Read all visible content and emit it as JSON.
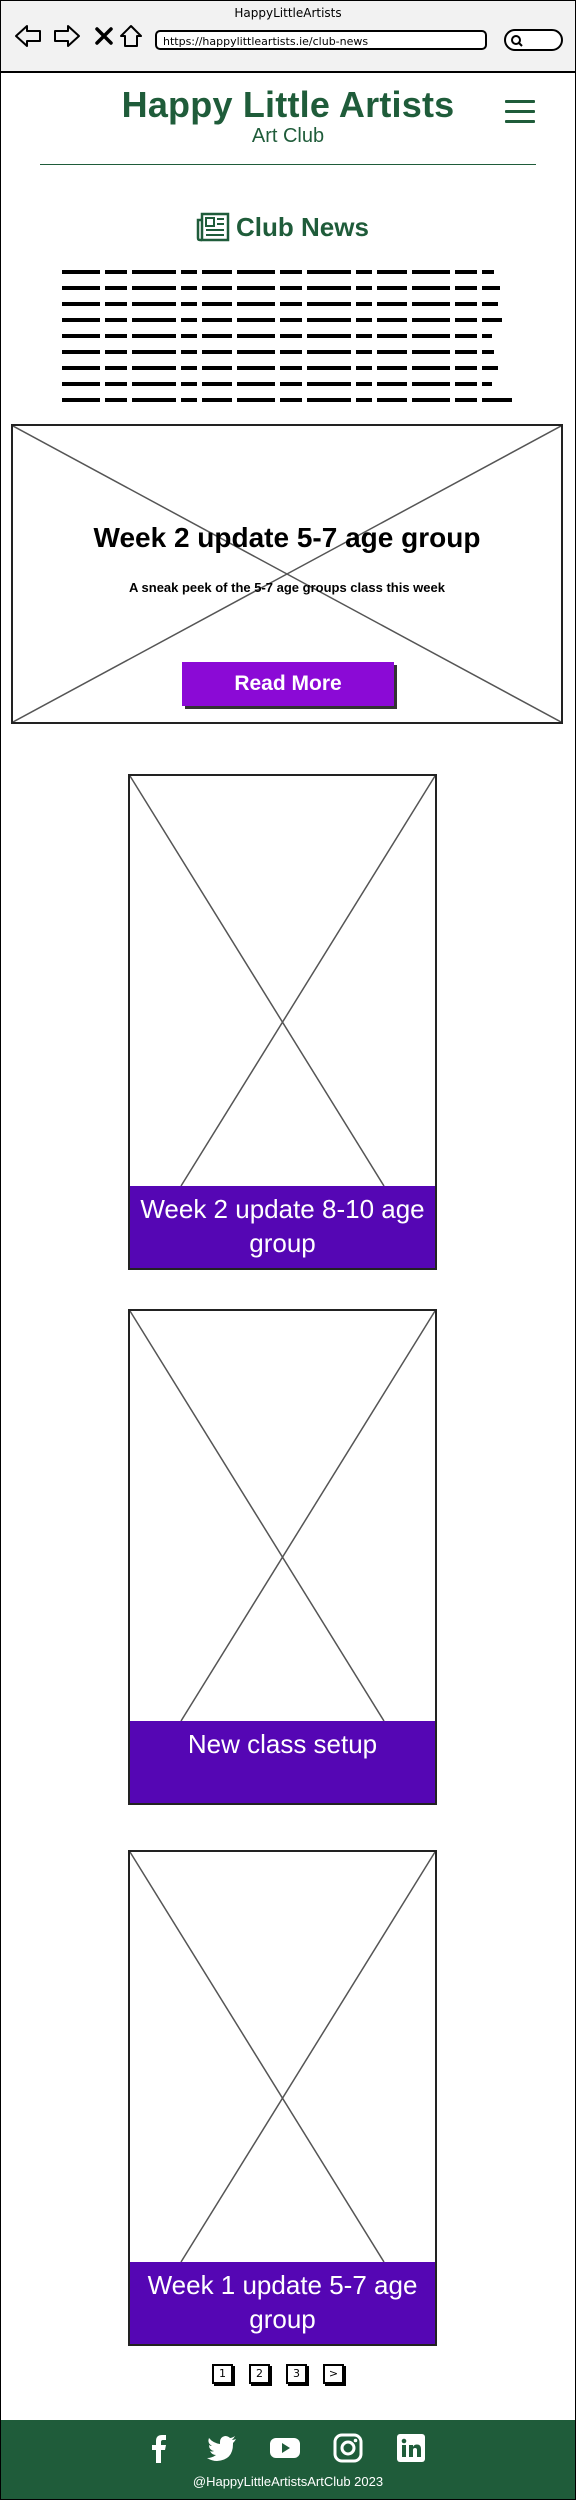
{
  "window": {
    "title": "HappyLittleArtists",
    "url": "https://happylittleartists.ie/club-news"
  },
  "header": {
    "title": "Happy Little Artists",
    "subtitle": "Art Club",
    "menu_icon": "hamburger-menu-icon"
  },
  "news": {
    "heading": "Club News",
    "heading_icon": "newspaper-icon"
  },
  "featured": {
    "title": "Week 2 update 5-7 age group",
    "description": "A sneak peek of the 5-7 age groups class this week",
    "button_label": "Read More"
  },
  "posts": [
    {
      "label": "Week 2 update 8-10 age group"
    },
    {
      "label": "New class setup"
    },
    {
      "label": "Week 1 update 5-7 age group"
    }
  ],
  "pagination": [
    "1",
    "2",
    "3",
    ">"
  ],
  "footer": {
    "social_icons": [
      "facebook-icon",
      "twitter-icon",
      "youtube-icon",
      "instagram-icon",
      "linkedin-icon"
    ],
    "copyright": "@HappyLittleArtistsArtClub 2023"
  },
  "colors": {
    "brand_green": "#1f5c3a",
    "button_purple": "#8b0ad6",
    "card_label_purple": "#5506b4"
  }
}
